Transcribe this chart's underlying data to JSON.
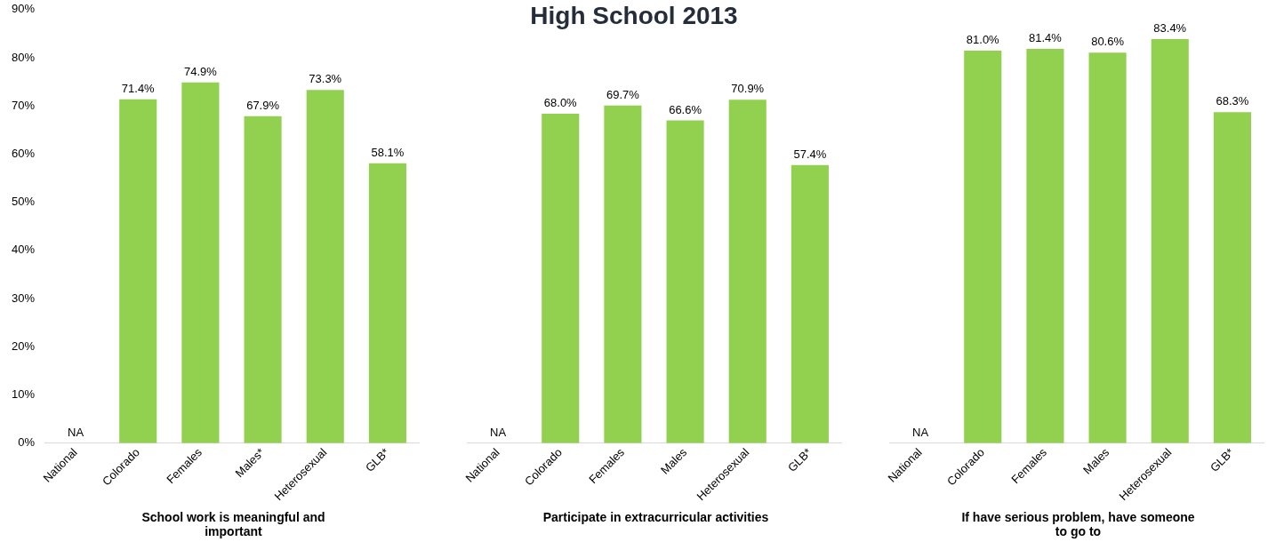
{
  "chart_data": [
    {
      "type": "bar",
      "xlabel": "School work is meaningful and important",
      "categories": [
        "National",
        "Colorado",
        "Females",
        "Males*",
        "Heterosexual",
        "GLB*"
      ],
      "values": [
        null,
        71.4,
        74.9,
        67.9,
        73.3,
        58.1
      ],
      "value_labels": [
        "NA",
        "71.4%",
        "74.9%",
        "67.9%",
        "73.3%",
        "58.1%"
      ],
      "color": "#92d050",
      "ylim": [
        0,
        90
      ],
      "yticks": [
        {
          "value": 0,
          "label": "0%"
        },
        {
          "value": 10,
          "label": "10%"
        },
        {
          "value": 20,
          "label": "20%"
        },
        {
          "value": 30,
          "label": "30%"
        },
        {
          "value": 40,
          "label": "40%"
        },
        {
          "value": 50,
          "label": "50%"
        },
        {
          "value": 60,
          "label": "60%"
        },
        {
          "value": 70,
          "label": "70%"
        },
        {
          "value": 80,
          "label": "80%"
        },
        {
          "value": 90,
          "label": "90%"
        }
      ],
      "grid": false,
      "legend": false
    },
    {
      "type": "bar",
      "title": "High School 2013",
      "xlabel": "Participate in extracurricular activities",
      "categories": [
        "National",
        "Colorado",
        "Females",
        "Males",
        "Heterosexual",
        "GLB*"
      ],
      "values": [
        null,
        68.0,
        69.7,
        66.6,
        70.9,
        57.4
      ],
      "value_labels": [
        "NA",
        "68.0%",
        "69.7%",
        "66.6%",
        "70.9%",
        "57.4%"
      ],
      "color": "#92d050",
      "ylim": [
        0,
        90
      ],
      "tick_labels": "x",
      "grid": false,
      "legend": false
    },
    {
      "type": "bar",
      "xlabel": "If have serious problem, have someone to go to",
      "categories": [
        "National",
        "Colorado",
        "Females",
        "Males",
        "Heterosexual",
        "GLB*"
      ],
      "values": [
        null,
        81.0,
        81.4,
        80.6,
        83.4,
        68.3
      ],
      "value_labels": [
        "NA",
        "81.0%",
        "81.4%",
        "80.6%",
        "83.4%",
        "68.3%"
      ],
      "color": "#92d050",
      "ylim": [
        0,
        90
      ],
      "tick_labels": "x",
      "grid": false,
      "legend": false
    }
  ]
}
